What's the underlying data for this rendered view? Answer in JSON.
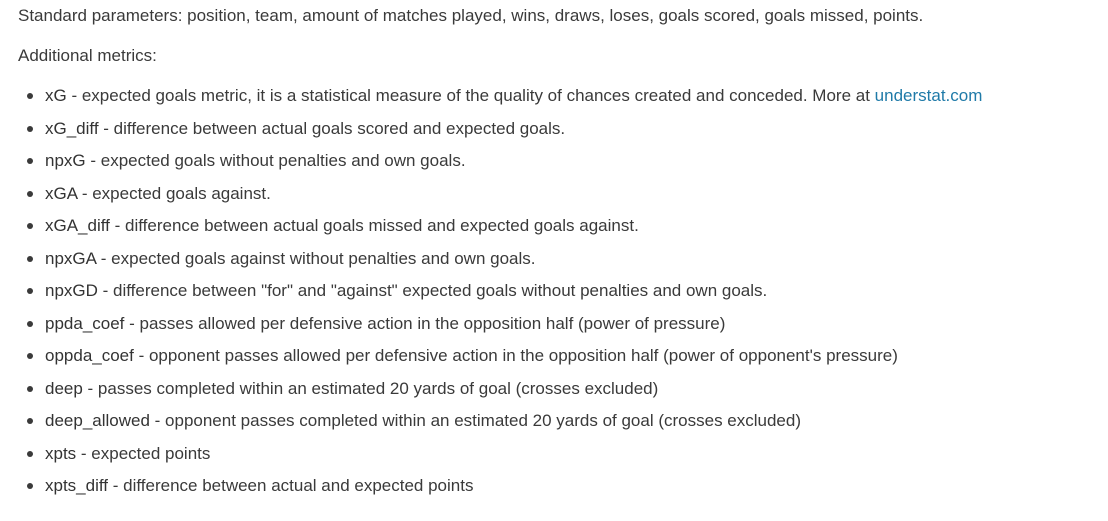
{
  "standard_text": "Standard parameters: position, team, amount of matches played, wins, draws, loses, goals scored, goals missed, points.",
  "additional_heading": "Additional metrics:",
  "metrics": [
    {
      "term": "xG",
      "desc": " - expected goals metric, it is a statistical measure of the quality of chances created and conceded. More at ",
      "link": "understat.com"
    },
    {
      "term": "xG_diff",
      "desc": " - difference between actual goals scored and expected goals."
    },
    {
      "term": "npxG",
      "desc": " - expected goals without penalties and own goals."
    },
    {
      "term": "xGA",
      "desc": " - expected goals against."
    },
    {
      "term": "xGA_diff",
      "desc": " - difference between actual goals missed and expected goals against."
    },
    {
      "term": "npxGA",
      "desc": " - expected goals against without penalties and own goals."
    },
    {
      "term": "npxGD",
      "desc": " - difference between \"for\" and \"against\" expected goals without penalties and own goals."
    },
    {
      "term": "ppda_coef",
      "desc": " - passes allowed per defensive action in the opposition half (power of pressure)"
    },
    {
      "term": "oppda_coef",
      "desc": " - opponent passes allowed per defensive action in the opposition half (power of opponent's pressure)"
    },
    {
      "term": "deep",
      "desc": " - passes completed within an estimated 20 yards of goal (crosses excluded)"
    },
    {
      "term": "deep_allowed",
      "desc": " - opponent passes completed within an estimated 20 yards of goal (crosses excluded)"
    },
    {
      "term": "xpts",
      "desc": " - expected points"
    },
    {
      "term": "xpts_diff",
      "desc": " - difference between actual and expected points"
    }
  ],
  "colors": {
    "text": "#3a3a3a",
    "link": "#1f7aa8",
    "background": "#ffffff"
  }
}
